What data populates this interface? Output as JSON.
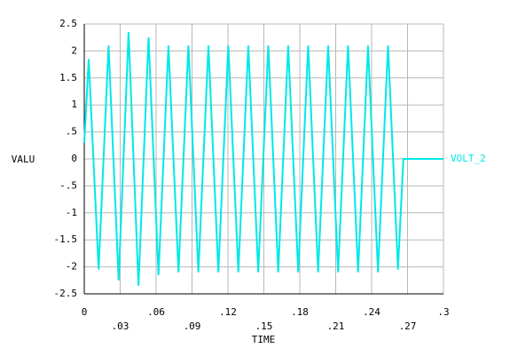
{
  "chart_data": {
    "type": "line",
    "x_label": "TIME",
    "y_label": "VALU",
    "x": [
      0,
      0.0037,
      0.012,
      0.0203,
      0.0287,
      0.037,
      0.0453,
      0.0537,
      0.062,
      0.0703,
      0.0787,
      0.087,
      0.0953,
      0.1037,
      0.112,
      0.1203,
      0.1287,
      0.137,
      0.1453,
      0.1537,
      0.162,
      0.1703,
      0.1787,
      0.187,
      0.1953,
      0.2037,
      0.212,
      0.2203,
      0.2287,
      0.237,
      0.2453,
      0.2537,
      0.262,
      0.2665,
      0.3
    ],
    "series": [
      {
        "name": "VOLT_2",
        "color": "#00e8e8",
        "values": [
          0.3,
          1.85,
          -2.05,
          2.1,
          -2.25,
          2.35,
          -2.35,
          2.25,
          -2.15,
          2.1,
          -2.1,
          2.1,
          -2.1,
          2.1,
          -2.1,
          2.1,
          -2.1,
          2.1,
          -2.1,
          2.1,
          -2.1,
          2.1,
          -2.1,
          2.1,
          -2.1,
          2.1,
          -2.1,
          2.1,
          -2.1,
          2.1,
          -2.1,
          2.1,
          -2.05,
          0,
          0
        ]
      }
    ],
    "xlim": [
      0,
      0.3
    ],
    "xticks": [
      0,
      {
        "value": 0.03,
        "label": ".03"
      },
      {
        "value": 0.06,
        "label": ".06"
      },
      {
        "value": 0.09,
        "label": ".09"
      },
      {
        "value": 0.12,
        "label": ".12"
      },
      {
        "value": 0.15,
        "label": ".15"
      },
      {
        "value": 0.18,
        "label": ".18"
      },
      {
        "value": 0.21,
        "label": ".21"
      },
      {
        "value": 0.24,
        "label": ".24"
      },
      {
        "value": 0.27,
        "label": ".27"
      },
      {
        "value": 0.3,
        "label": ".3"
      }
    ],
    "ylim": [
      -2.5,
      2.5
    ],
    "yticks": [
      2.5,
      2,
      1.5,
      1,
      {
        "value": 0.5,
        "label": ".5"
      },
      0,
      {
        "value": -0.5,
        "label": "-.5"
      },
      -1,
      -1.5,
      -2,
      -2.5
    ],
    "grid": true
  }
}
